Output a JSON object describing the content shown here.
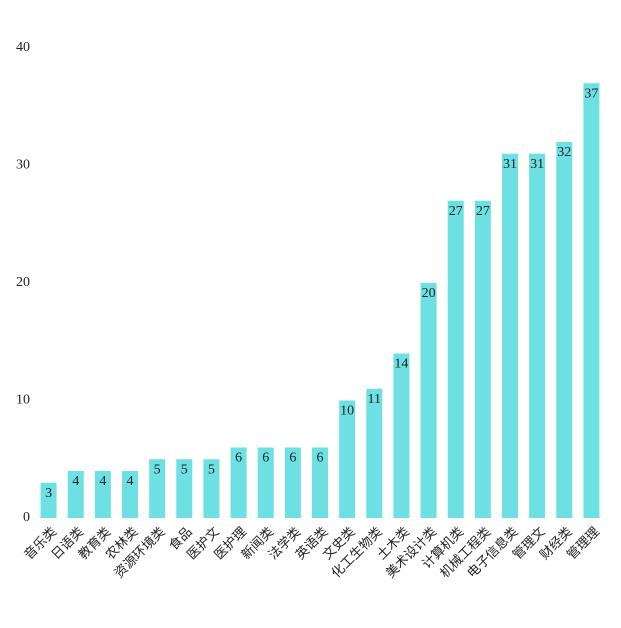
{
  "chart_data": {
    "type": "bar",
    "categories": [
      "音乐类",
      "日语类",
      "教育类",
      "农林类",
      "资源环境类",
      "食品",
      "医护文",
      "医护理",
      "新闻类",
      "法学类",
      "英语类",
      "文史类",
      "化工生物类",
      "土木类",
      "美术设计类",
      "计算机类",
      "机械工程类",
      "电子信息类",
      "管理文",
      "财经类",
      "管理理"
    ],
    "values": [
      3,
      4,
      4,
      4,
      5,
      5,
      5,
      6,
      6,
      6,
      6,
      10,
      11,
      14,
      20,
      27,
      27,
      31,
      31,
      32,
      37
    ],
    "color": "#6de0e3",
    "ylim": [
      0,
      40
    ],
    "yticks": [
      0,
      10,
      20,
      30,
      40
    ],
    "grid": false
  }
}
